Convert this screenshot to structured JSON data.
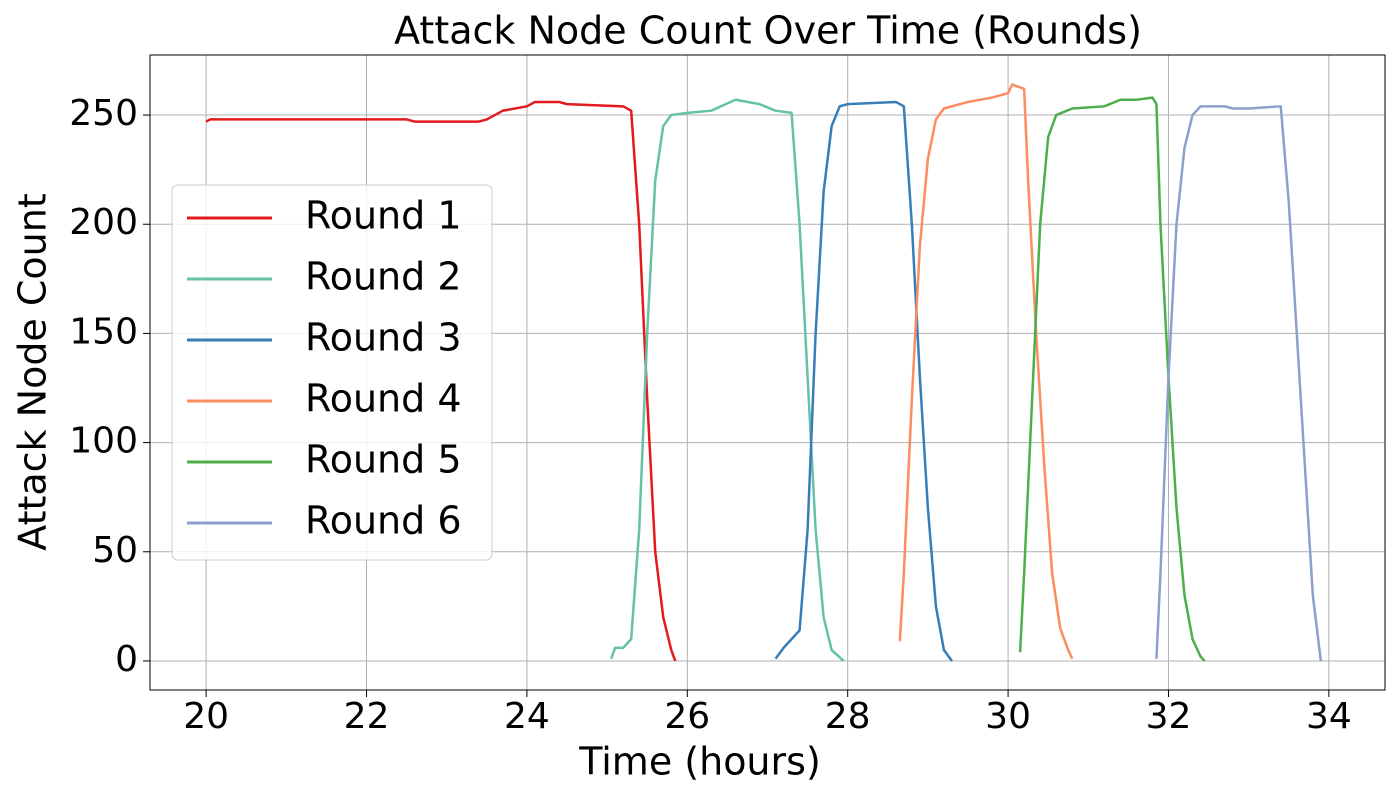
{
  "chart_data": {
    "type": "line",
    "title": "Attack Node Count Over Time (Rounds)",
    "x_label": "Time (hours)",
    "y_label": "Attack Node Count",
    "xlim": [
      19.3,
      34.7
    ],
    "ylim": [
      -13.3,
      277.5
    ],
    "xticks": [
      20,
      22,
      24,
      26,
      28,
      30,
      32,
      34
    ],
    "yticks": [
      0,
      50,
      100,
      150,
      200,
      250
    ],
    "grid": true,
    "legend": "center-left",
    "series": [
      {
        "name": "Round 1",
        "color": "#e41a1c",
        "x": [
          20,
          20.05,
          22.5,
          22.6,
          23.4,
          23.5,
          23.7,
          24.0,
          24.1,
          24.4,
          24.5,
          25.2,
          25.3,
          25.4,
          25.5,
          25.6,
          25.7,
          25.8,
          25.85
        ],
        "values": [
          247,
          248,
          248,
          247,
          247,
          248,
          252,
          254,
          256,
          256,
          255,
          254,
          252,
          200,
          120,
          50,
          20,
          5,
          0
        ]
      },
      {
        "name": "Round 2",
        "color": "#66c2a5",
        "x": [
          25.05,
          25.1,
          25.2,
          25.3,
          25.4,
          25.5,
          25.6,
          25.7,
          25.8,
          26,
          26.3,
          26.6,
          26.9,
          27.1,
          27.3,
          27.4,
          27.5,
          27.6,
          27.7,
          27.8,
          27.95
        ],
        "values": [
          1,
          6,
          6,
          10,
          60,
          150,
          220,
          245,
          250,
          251,
          252,
          257,
          255,
          252,
          251,
          200,
          130,
          60,
          20,
          5,
          0
        ]
      },
      {
        "name": "Round 3",
        "color": "#377eb8",
        "x": [
          27.1,
          27.2,
          27.3,
          27.4,
          27.5,
          27.6,
          27.7,
          27.8,
          27.9,
          28.0,
          28.6,
          28.7,
          28.8,
          28.9,
          29.0,
          29.1,
          29.2,
          29.3
        ],
        "values": [
          1,
          6,
          10,
          14,
          60,
          150,
          215,
          245,
          254,
          255,
          256,
          254,
          200,
          130,
          70,
          25,
          5,
          0
        ]
      },
      {
        "name": "Round 4",
        "color": "#fc8d62",
        "x": [
          28.65,
          28.7,
          28.8,
          28.9,
          29.0,
          29.1,
          29.2,
          29.5,
          29.8,
          30.0,
          30.05,
          30.2,
          30.25,
          30.35,
          30.45,
          30.55,
          30.65,
          30.75,
          30.8
        ],
        "values": [
          9,
          40,
          120,
          190,
          230,
          248,
          253,
          256,
          258,
          260,
          264,
          262,
          220,
          150,
          90,
          40,
          15,
          5,
          1
        ]
      },
      {
        "name": "Round 5",
        "color": "#4daf4a",
        "x": [
          30.15,
          30.2,
          30.3,
          30.4,
          30.5,
          30.6,
          30.8,
          31.2,
          31.4,
          31.6,
          31.8,
          31.85,
          31.9,
          32.0,
          32.1,
          32.2,
          32.3,
          32.4,
          32.45
        ],
        "values": [
          4,
          40,
          120,
          200,
          240,
          250,
          253,
          254,
          257,
          257,
          258,
          255,
          200,
          130,
          70,
          30,
          10,
          2,
          0
        ]
      },
      {
        "name": "Round 6",
        "color": "#8da0cb",
        "x": [
          31.85,
          31.9,
          32.0,
          32.1,
          32.2,
          32.3,
          32.4,
          32.7,
          32.8,
          33.0,
          33.4,
          33.5,
          33.6,
          33.7,
          33.8,
          33.9
        ],
        "values": [
          1,
          40,
          130,
          200,
          235,
          250,
          254,
          254,
          253,
          253,
          254,
          210,
          150,
          90,
          30,
          0
        ]
      }
    ]
  }
}
